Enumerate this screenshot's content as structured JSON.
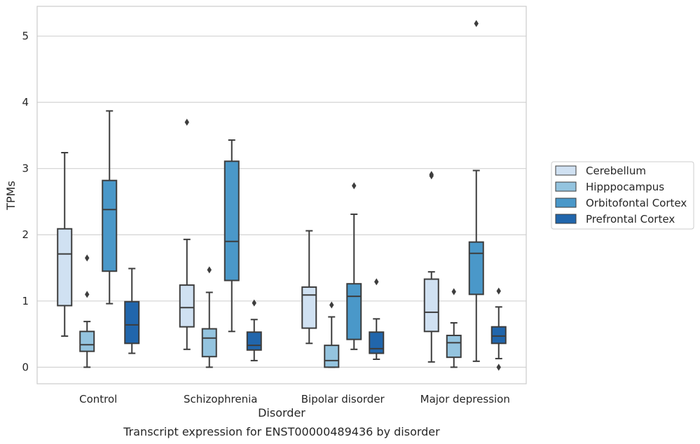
{
  "chart_data": {
    "type": "box",
    "xlabel": "Disorder",
    "ylabel": "TPMs",
    "caption": "Transcript expression for ENST00000489436 by disorder",
    "ylim": [
      -0.25,
      5.45
    ],
    "yticks": [
      "0",
      "1",
      "2",
      "3",
      "4",
      "5"
    ],
    "grid": "horizontal",
    "legend_position": "right",
    "categories": [
      "Control",
      "Schizophrenia",
      "Bipolar disorder",
      "Major depression"
    ],
    "series": [
      {
        "name": "Cerebellum",
        "color": "#d0e1f2",
        "boxes": [
          {
            "whisker_low": 0.47,
            "q1": 0.93,
            "median": 1.71,
            "q3": 2.09,
            "whisker_high": 3.24,
            "outliers": []
          },
          {
            "whisker_low": 0.27,
            "q1": 0.61,
            "median": 0.9,
            "q3": 1.24,
            "whisker_high": 1.93,
            "outliers": [
              3.7
            ]
          },
          {
            "whisker_low": 0.36,
            "q1": 0.59,
            "median": 1.09,
            "q3": 1.21,
            "whisker_high": 2.06,
            "outliers": []
          },
          {
            "whisker_low": 0.08,
            "q1": 0.54,
            "median": 0.83,
            "q3": 1.33,
            "whisker_high": 1.44,
            "outliers": [
              2.89,
              2.91
            ]
          }
        ]
      },
      {
        "name": "Hipppocampus",
        "color": "#94c4df",
        "boxes": [
          {
            "whisker_low": 0.0,
            "q1": 0.24,
            "median": 0.34,
            "q3": 0.54,
            "whisker_high": 0.69,
            "outliers": [
              1.1,
              1.65
            ]
          },
          {
            "whisker_low": 0.0,
            "q1": 0.16,
            "median": 0.44,
            "q3": 0.58,
            "whisker_high": 1.13,
            "outliers": [
              1.47
            ]
          },
          {
            "whisker_low": 0.0,
            "q1": 0.0,
            "median": 0.1,
            "q3": 0.33,
            "whisker_high": 0.76,
            "outliers": [
              0.94
            ]
          },
          {
            "whisker_low": 0.0,
            "q1": 0.15,
            "median": 0.37,
            "q3": 0.48,
            "whisker_high": 0.67,
            "outliers": [
              1.14
            ]
          }
        ]
      },
      {
        "name": "Orbitofontal Cortex",
        "color": "#4a98c9",
        "boxes": [
          {
            "whisker_low": 0.96,
            "q1": 1.45,
            "median": 2.38,
            "q3": 2.82,
            "whisker_high": 3.87,
            "outliers": []
          },
          {
            "whisker_low": 0.54,
            "q1": 1.31,
            "median": 1.9,
            "q3": 3.11,
            "whisker_high": 3.43,
            "outliers": []
          },
          {
            "whisker_low": 0.27,
            "q1": 0.42,
            "median": 1.07,
            "q3": 1.26,
            "whisker_high": 2.31,
            "outliers": [
              2.74
            ]
          },
          {
            "whisker_low": 0.09,
            "q1": 1.1,
            "median": 1.72,
            "q3": 1.89,
            "whisker_high": 2.97,
            "outliers": [
              5.19
            ]
          }
        ]
      },
      {
        "name": "Prefrontal Cortex",
        "color": "#2166ac",
        "boxes": [
          {
            "whisker_low": 0.21,
            "q1": 0.36,
            "median": 0.64,
            "q3": 0.99,
            "whisker_high": 1.49,
            "outliers": []
          },
          {
            "whisker_low": 0.1,
            "q1": 0.26,
            "median": 0.33,
            "q3": 0.53,
            "whisker_high": 0.72,
            "outliers": [
              0.97
            ]
          },
          {
            "whisker_low": 0.12,
            "q1": 0.21,
            "median": 0.28,
            "q3": 0.53,
            "whisker_high": 0.73,
            "outliers": [
              1.29
            ]
          },
          {
            "whisker_low": 0.13,
            "q1": 0.36,
            "median": 0.47,
            "q3": 0.61,
            "whisker_high": 0.91,
            "outliers": [
              0.0,
              1.15
            ]
          }
        ]
      }
    ]
  }
}
